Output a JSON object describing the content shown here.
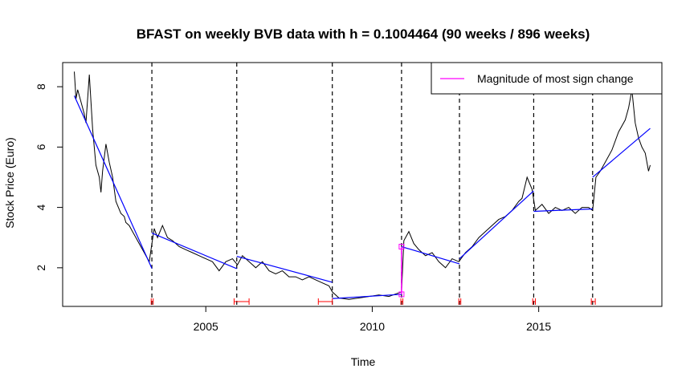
{
  "chart_data": {
    "type": "line",
    "title": "BFAST on weekly BVB data with h = 0.1004464 (90 weeks / 896 weeks)",
    "xlabel": "Time",
    "ylabel": "Stock Price (Euro)",
    "xlim": [
      2000.7,
      2018.7
    ],
    "ylim": [
      0.72,
      8.8
    ],
    "xticks": [
      2005,
      2010,
      2015
    ],
    "yticks": [
      2,
      4,
      6,
      8
    ],
    "grid": false,
    "legend": {
      "position": "top-right",
      "entries": [
        {
          "label": "Magnitude of most sign change",
          "color": "#ff00ff"
        }
      ]
    },
    "colors": {
      "price": "#000000",
      "trend": "#0000ff",
      "breakpoint": "#000000",
      "confidence": "#ff0000",
      "magnitude": "#ff00ff"
    },
    "series": [
      {
        "name": "Stock price",
        "x": [
          2001.05,
          2001.1,
          2001.15,
          2001.25,
          2001.35,
          2001.4,
          2001.5,
          2001.6,
          2001.7,
          2001.8,
          2001.85,
          2001.9,
          2002.0,
          2002.1,
          2002.2,
          2002.3,
          2002.45,
          2002.55,
          2002.6,
          2002.7,
          2002.8,
          2002.9,
          2003.0,
          2003.1,
          2003.2,
          2003.3,
          2003.38,
          2003.45,
          2003.55,
          2003.7,
          2003.85,
          2004.0,
          2004.2,
          2004.4,
          2004.6,
          2004.8,
          2005.0,
          2005.2,
          2005.4,
          2005.6,
          2005.8,
          2005.95,
          2006.1,
          2006.3,
          2006.5,
          2006.7,
          2006.9,
          2007.1,
          2007.3,
          2007.5,
          2007.7,
          2007.9,
          2008.1,
          2008.3,
          2008.5,
          2008.7,
          2008.8,
          2009.0,
          2009.3,
          2009.6,
          2009.9,
          2010.2,
          2010.5,
          2010.75,
          2010.88,
          2010.95,
          2011.1,
          2011.25,
          2011.4,
          2011.6,
          2011.8,
          2012.0,
          2012.2,
          2012.4,
          2012.6,
          2012.8,
          2013.0,
          2013.2,
          2013.5,
          2013.8,
          2014.0,
          2014.2,
          2014.4,
          2014.5,
          2014.65,
          2014.8,
          2014.9,
          2015.1,
          2015.3,
          2015.5,
          2015.7,
          2015.9,
          2016.1,
          2016.3,
          2016.5,
          2016.62,
          2016.72,
          2016.85,
          2017.0,
          2017.2,
          2017.4,
          2017.6,
          2017.7,
          2017.8,
          2017.9,
          2018.0,
          2018.1,
          2018.2,
          2018.3,
          2018.35
        ],
        "y": [
          8.5,
          7.6,
          7.9,
          7.5,
          7.1,
          6.8,
          8.4,
          6.6,
          5.4,
          5.0,
          4.5,
          5.2,
          6.1,
          5.5,
          5.0,
          4.2,
          3.8,
          3.7,
          3.5,
          3.4,
          3.2,
          3.0,
          2.8,
          2.6,
          2.4,
          2.2,
          2.8,
          3.3,
          3.0,
          3.4,
          3.0,
          2.9,
          2.7,
          2.6,
          2.5,
          2.4,
          2.3,
          2.2,
          1.9,
          2.2,
          2.3,
          2.1,
          2.4,
          2.2,
          2.0,
          2.2,
          1.9,
          1.8,
          1.9,
          1.7,
          1.7,
          1.6,
          1.7,
          1.6,
          1.5,
          1.4,
          1.2,
          1.0,
          0.95,
          1.0,
          1.05,
          1.1,
          1.05,
          1.15,
          1.2,
          2.9,
          3.2,
          2.8,
          2.6,
          2.4,
          2.5,
          2.2,
          2.0,
          2.3,
          2.2,
          2.5,
          2.7,
          3.0,
          3.3,
          3.6,
          3.7,
          3.9,
          4.2,
          4.3,
          5.0,
          4.6,
          3.9,
          4.1,
          3.8,
          4.0,
          3.9,
          4.0,
          3.8,
          4.0,
          4.0,
          3.9,
          5.0,
          5.2,
          5.5,
          5.9,
          6.5,
          6.9,
          7.3,
          7.9,
          6.8,
          6.3,
          6.0,
          5.8,
          5.2,
          5.4
        ]
      },
      {
        "name": "Trend segments",
        "segments": [
          {
            "x": [
              2001.05,
              2003.38
            ],
            "y": [
              7.7,
              1.98
            ]
          },
          {
            "x": [
              2003.38,
              2005.93
            ],
            "y": [
              3.15,
              1.97
            ]
          },
          {
            "x": [
              2005.93,
              2008.8
            ],
            "y": [
              2.38,
              1.52
            ]
          },
          {
            "x": [
              2008.8,
              2010.88
            ],
            "y": [
              0.98,
              1.12
            ]
          },
          {
            "x": [
              2010.88,
              2012.62
            ],
            "y": [
              2.7,
              2.13
            ]
          },
          {
            "x": [
              2012.62,
              2014.85
            ],
            "y": [
              2.3,
              4.55
            ]
          },
          {
            "x": [
              2014.85,
              2016.62
            ],
            "y": [
              3.87,
              3.95
            ]
          },
          {
            "x": [
              2016.62,
              2018.35
            ],
            "y": [
              5.0,
              6.62
            ]
          }
        ]
      }
    ],
    "breakpoints": [
      2003.38,
      2005.93,
      2008.8,
      2010.88,
      2012.62,
      2014.85,
      2016.62
    ],
    "confidence_intervals": [
      [
        2003.36,
        2003.42
      ],
      [
        2005.85,
        2006.3
      ],
      [
        2008.38,
        2008.8
      ],
      [
        2010.86,
        2010.92
      ],
      [
        2012.6,
        2012.66
      ],
      [
        2014.82,
        2014.9
      ],
      [
        2016.58,
        2016.7
      ]
    ],
    "magnitude": {
      "x": 2010.88,
      "from": 1.12,
      "to": 2.7
    }
  }
}
